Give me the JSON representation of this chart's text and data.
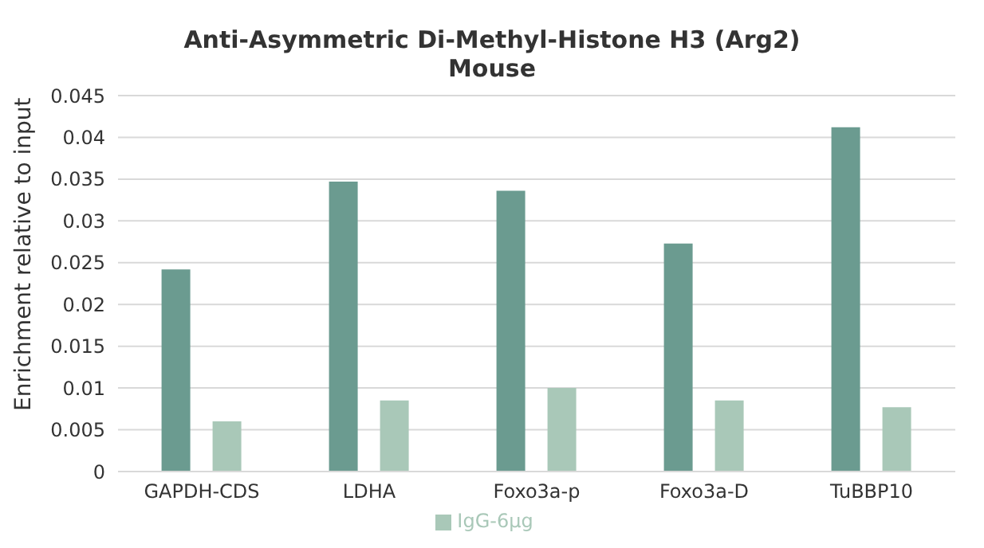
{
  "chart_data": {
    "type": "bar",
    "title": "Anti-Asymmetric Di-Methyl-Histone H3 (Arg2)\nMouse",
    "ylabel": "Enrichment relative to input",
    "categories": [
      "GAPDH-CDS",
      "LDHA",
      "Foxo3a-p",
      "Foxo3a-D",
      "TuBBP10"
    ],
    "series": [
      {
        "color": "#6b9b90",
        "values": [
          0.0242,
          0.0347,
          0.0336,
          0.0273,
          0.0412
        ]
      },
      {
        "name": "IgG-6μg",
        "color": "#a9c8b8",
        "values": [
          0.006,
          0.0085,
          0.01,
          0.0085,
          0.0077
        ]
      }
    ],
    "ylim": [
      0,
      0.045
    ],
    "yticks": [
      0,
      0.005,
      0.01,
      0.015,
      0.02,
      0.025,
      0.03,
      0.035,
      0.04,
      0.045
    ],
    "grid": "y",
    "legend": "bottom"
  }
}
